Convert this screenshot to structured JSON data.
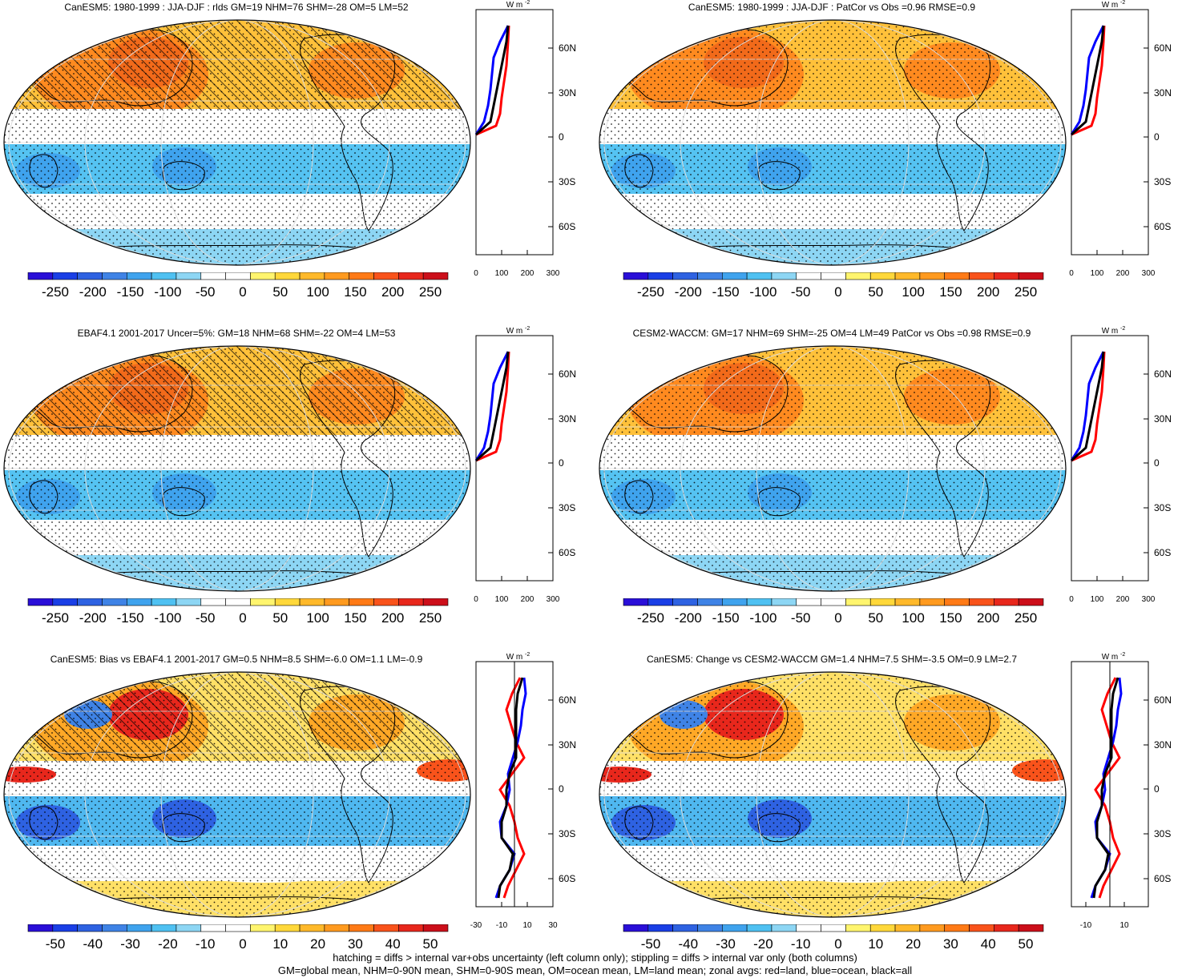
{
  "panels": [
    {
      "id": "p1",
      "title": "CanESM5: 1980-1999 : JJA-DJF : rlds GM=19 NHM=76 SHM=-28 OM=5 LM=52",
      "zonal_unit": "W m",
      "zonal_unit_exp": "-2",
      "lat_ticks": [
        "60N",
        "30N",
        "0",
        "30S",
        "60S"
      ],
      "x_ticks": [
        "0",
        "100",
        "200",
        "300"
      ],
      "cbar_labels": [
        "-250",
        "-200",
        "-150",
        "-100",
        "-50",
        "0",
        "50",
        "100",
        "150",
        "200",
        "250"
      ],
      "hatching": true
    },
    {
      "id": "p2",
      "title": "CanESM5: 1980-1999 : JJA-DJF : PatCor vs Obs =0.96 RMSE=0.9",
      "zonal_unit": "W m",
      "zonal_unit_exp": "-2",
      "lat_ticks": [
        "60N",
        "30N",
        "0",
        "30S",
        "60S"
      ],
      "x_ticks": [
        "0",
        "100",
        "200",
        "300"
      ],
      "cbar_labels": [
        "-250",
        "-200",
        "-150",
        "-100",
        "-50",
        "0",
        "50",
        "100",
        "150",
        "200",
        "250"
      ],
      "hatching": false
    },
    {
      "id": "p3",
      "title": "EBAF4.1 2001-2017 Uncer=5%: GM=18 NHM=68 SHM=-22 OM=4 LM=53",
      "zonal_unit": "W m",
      "zonal_unit_exp": "-2",
      "lat_ticks": [
        "60N",
        "30N",
        "0",
        "30S",
        "60S"
      ],
      "x_ticks": [
        "0",
        "100",
        "200",
        "300"
      ],
      "cbar_labels": [
        "-250",
        "-200",
        "-150",
        "-100",
        "-50",
        "0",
        "50",
        "100",
        "150",
        "200",
        "250"
      ],
      "hatching": true
    },
    {
      "id": "p4",
      "title": "CESM2-WACCM: GM=17 NHM=69 SHM=-25 OM=4 LM=49 PatCor vs Obs =0.98 RMSE=0.9",
      "zonal_unit": "W m",
      "zonal_unit_exp": "-2",
      "lat_ticks": [
        "60N",
        "30N",
        "0",
        "30S",
        "60S"
      ],
      "x_ticks": [
        "0",
        "100",
        "200",
        "300"
      ],
      "cbar_labels": [
        "-250",
        "-200",
        "-150",
        "-100",
        "-50",
        "0",
        "50",
        "100",
        "150",
        "200",
        "250"
      ],
      "hatching": false
    },
    {
      "id": "p5",
      "title": "CanESM5: Bias vs EBAF4.1 2001-2017 GM=0.5 NHM=8.5 SHM=-6.0 OM=1.1 LM=-0.9",
      "zonal_unit": "W m",
      "zonal_unit_exp": "-2",
      "lat_ticks": [
        "60N",
        "30N",
        "0",
        "30S",
        "60S"
      ],
      "x_ticks": [
        "-30",
        "-10",
        "10",
        "30"
      ],
      "cbar_labels": [
        "-50",
        "-40",
        "-30",
        "-20",
        "-10",
        "0",
        "10",
        "20",
        "30",
        "40",
        "50"
      ],
      "hatching": true
    },
    {
      "id": "p6",
      "title": "CanESM5: Change vs CESM2-WACCM GM=1.4 NHM=7.5 SHM=-3.5 OM=0.9 LM=2.7",
      "zonal_unit": "W m",
      "zonal_unit_exp": "-2",
      "lat_ticks": [
        "60N",
        "30N",
        "0",
        "30S",
        "60S"
      ],
      "x_ticks": [
        "-10",
        "10"
      ],
      "cbar_labels": [
        "-50",
        "-40",
        "-30",
        "-20",
        "-10",
        "0",
        "10",
        "20",
        "30",
        "40",
        "50"
      ],
      "hatching": false
    }
  ],
  "footer": {
    "line1": "hatching = diffs > internal var+obs uncertainty (left column only); stippling = diffs > internal var only (both columns)",
    "line2": "GM=global mean, NHM=0-90N mean, SHM=0-90S mean, OM=ocean mean, LM=land mean; zonal avgs: red=land, blue=ocean, black=all"
  },
  "colors": {
    "colorbar": [
      "#2a0fd8",
      "#1a3fe6",
      "#2e62e2",
      "#3f83e6",
      "#3fa3ee",
      "#4fc1f2",
      "#8dd6f4",
      "#ffffff",
      "#ffffff",
      "#fff56e",
      "#ffd83a",
      "#ffb92a",
      "#ff9a1f",
      "#ff7a16",
      "#f9531b",
      "#e8271c",
      "#cc0f1a"
    ],
    "land_zonal": "#ff0000",
    "ocean_zonal": "#0000ff",
    "all_zonal": "#000000"
  }
}
